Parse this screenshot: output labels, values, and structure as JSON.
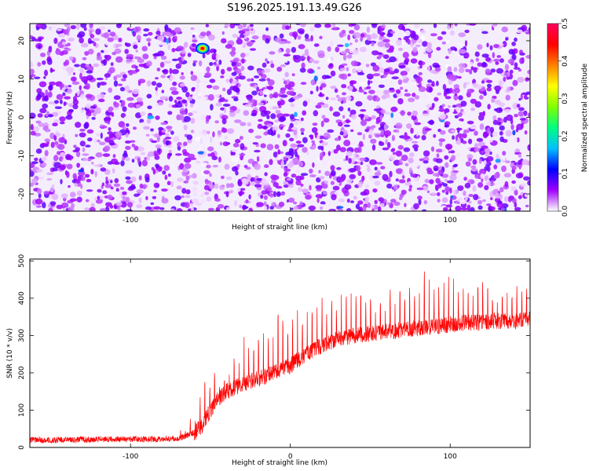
{
  "title": "S196.2025.191.13.49.G26",
  "chart_data": [
    {
      "type": "heatmap",
      "xlabel": "Height of straight line (km)",
      "ylabel": "Frequency (Hz)",
      "xlim": [
        -163,
        150
      ],
      "ylim": [
        -24.5,
        24.5
      ],
      "x_ticks": [
        -100,
        0,
        100
      ],
      "y_ticks": [
        -20,
        -10,
        0,
        10,
        20
      ],
      "colorbar": {
        "label": "Normalized spectral amplitude",
        "range": [
          0,
          0.5
        ],
        "ticks": [
          0.0,
          0.1,
          0.2,
          0.3,
          0.4,
          0.5
        ],
        "colors": [
          "#ffffff",
          "#a000ff",
          "#0000ff",
          "#00c0ff",
          "#00ff80",
          "#80ff00",
          "#ffff00",
          "#ff8000",
          "#ff0000",
          "#ff0060"
        ]
      },
      "features": {
        "background_amplitude": [
          0.0,
          0.08
        ],
        "hotspot": {
          "x": -55,
          "y": 18,
          "value": 0.45
        },
        "low_amplitude_stripe_x": [
          -60,
          -53
        ]
      }
    },
    {
      "type": "line",
      "xlabel": "Height of straight line (km)",
      "ylabel": "SNR (10 * v/v)",
      "xlim": [
        -163,
        150
      ],
      "ylim": [
        0,
        505
      ],
      "x_ticks": [
        -100,
        0,
        100
      ],
      "y_ticks": [
        0,
        100,
        200,
        300,
        400,
        500
      ],
      "grid": false,
      "series": [
        {
          "color": "#ff0000",
          "x": [
            -163,
            -140,
            -120,
            -100,
            -80,
            -70,
            -60,
            -55,
            -50,
            -45,
            -40,
            -30,
            -20,
            -10,
            0,
            10,
            20,
            30,
            40,
            50,
            60,
            70,
            80,
            90,
            100,
            110,
            120,
            130,
            140,
            150
          ],
          "values": [
            20,
            20,
            22,
            22,
            22,
            24,
            40,
            60,
            100,
            130,
            150,
            170,
            185,
            200,
            220,
            250,
            275,
            290,
            300,
            305,
            310,
            315,
            320,
            325,
            330,
            335,
            335,
            340,
            340,
            342
          ],
          "peaks": [
            0,
            0,
            0,
            0,
            0,
            10,
            40,
            100,
            80,
            60,
            50,
            90,
            110,
            130,
            120,
            100,
            110,
            90,
            120,
            120,
            100,
            90,
            120,
            120,
            100,
            90,
            100,
            80,
            90,
            80
          ]
        }
      ]
    }
  ]
}
